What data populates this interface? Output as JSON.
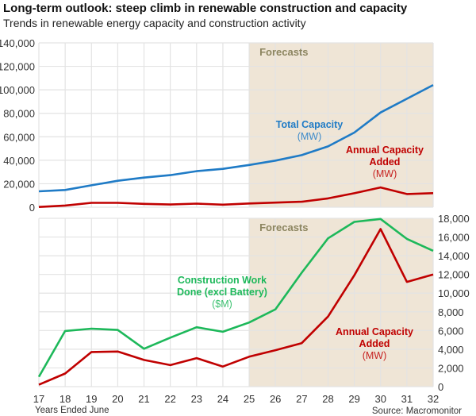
{
  "colors": {
    "total": "#1f7bc6",
    "added": "#c00000",
    "construction": "#1db85a",
    "forecast_shade": "#efe5d6",
    "forecast_text": "#8c8560",
    "grid": "#e3e3e3"
  },
  "chart_data": [
    {
      "type": "line",
      "title": "Long-term outlook: steep climb in renewable construction and capacity",
      "subtitle": "Trends in renewable energy capacity and construction activity",
      "x": [
        "17",
        "18",
        "19",
        "20",
        "21",
        "22",
        "23",
        "24",
        "25",
        "26",
        "27",
        "28",
        "29",
        "30",
        "31",
        "32"
      ],
      "ylim": [
        0,
        140000
      ],
      "yticks": [
        "0",
        "20,000",
        "40,000",
        "60,000",
        "80,000",
        "100,000",
        "120,000",
        "140,000"
      ],
      "forecast_from": "25",
      "forecast_label": "Forecasts",
      "grid": true,
      "series": [
        {
          "key": "total",
          "name": "Total Capacity",
          "unit": "(MW)",
          "values": [
            13500,
            14700,
            18700,
            22500,
            25200,
            27300,
            30700,
            32700,
            36000,
            39700,
            44400,
            51800,
            63600,
            80700,
            92400,
            104100
          ]
        },
        {
          "key": "added",
          "name": "Annual Capacity Added",
          "name_lines": [
            "Annual Capacity",
            "Added"
          ],
          "unit": "(MW)",
          "values": [
            200,
            1400,
            3700,
            3750,
            2850,
            2300,
            3050,
            2150,
            3200,
            3900,
            4650,
            7500,
            11900,
            16850,
            11200,
            12000
          ]
        }
      ]
    },
    {
      "type": "line",
      "x": [
        "17",
        "18",
        "19",
        "20",
        "21",
        "22",
        "23",
        "24",
        "25",
        "26",
        "27",
        "28",
        "29",
        "30",
        "31",
        "32"
      ],
      "xlabel": "Years Ended June",
      "source": "Source: Macromonitor",
      "ylim": [
        0,
        18000
      ],
      "yticks": [
        "0",
        "2,000",
        "4,000",
        "6,000",
        "8,000",
        "10,000",
        "12,000",
        "14,000",
        "16,000",
        "18,000"
      ],
      "forecast_from": "25",
      "forecast_label": "Forecasts",
      "grid": true,
      "series": [
        {
          "key": "construction",
          "name": "Construction Work Done (excl Battery)",
          "name_lines": [
            "Construction Work",
            "Done (excl Battery)"
          ],
          "unit": "($M)",
          "values": [
            1050,
            5950,
            6200,
            6060,
            4050,
            5240,
            6350,
            5870,
            6860,
            8270,
            12180,
            15860,
            17620,
            17930,
            15800,
            14530
          ]
        },
        {
          "key": "added",
          "name": "Annual Capacity Added",
          "name_lines": [
            "Annual Capacity",
            "Added"
          ],
          "unit": "(MW)",
          "values": [
            200,
            1400,
            3700,
            3750,
            2850,
            2300,
            3050,
            2150,
            3200,
            3900,
            4650,
            7500,
            11900,
            16850,
            11200,
            12000
          ]
        }
      ]
    }
  ]
}
